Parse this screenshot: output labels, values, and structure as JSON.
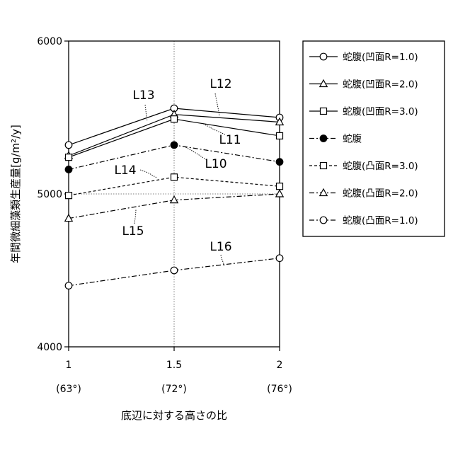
{
  "chart_data": {
    "type": "line",
    "title": "",
    "ylabel": "年間微細藻類生産量[g/m²/y]",
    "xlabel": "底辺に対する高さの比",
    "ylim": [
      4000,
      6000
    ],
    "yticks": [
      4000,
      5000,
      6000
    ],
    "x": [
      1,
      1.5,
      2
    ],
    "xtick_labels": [
      "1",
      "1.5",
      "2"
    ],
    "xtick_sublabels": [
      "(63°)",
      "(72°)",
      "(76°)"
    ],
    "grid": "dotted lines at x=1.5 and y=5000",
    "legend_position": "right",
    "series": [
      {
        "name": "蛇腹(凹面R=1.0)",
        "values": [
          5320,
          5560,
          5500
        ],
        "marker": "circle",
        "fill": "open",
        "line": "solid"
      },
      {
        "name": "蛇腹(凹面R=2.0)",
        "values": [
          5250,
          5520,
          5470
        ],
        "marker": "triangle",
        "fill": "open",
        "line": "solid"
      },
      {
        "name": "蛇腹(凹面R=3.0)",
        "values": [
          5240,
          5490,
          5380
        ],
        "marker": "square",
        "fill": "open",
        "line": "solid"
      },
      {
        "name": "蛇腹",
        "values": [
          5160,
          5320,
          5210
        ],
        "marker": "circle",
        "fill": "filled",
        "line": "dashdot"
      },
      {
        "name": "蛇腹(凸面R=3.0)",
        "values": [
          4990,
          5110,
          5050
        ],
        "marker": "square",
        "fill": "open",
        "line": "dashed"
      },
      {
        "name": "蛇腹(凸面R=2.0)",
        "values": [
          4840,
          4960,
          5000
        ],
        "marker": "triangle",
        "fill": "open",
        "line": "dashdot"
      },
      {
        "name": "蛇腹(凸面R=1.0)",
        "values": [
          4400,
          4500,
          4580
        ],
        "marker": "circle",
        "fill": "open",
        "line": "dashdot"
      }
    ],
    "annotations": [
      {
        "text": "L13",
        "series": 0
      },
      {
        "text": "L12",
        "series": 1
      },
      {
        "text": "L11",
        "series": 2
      },
      {
        "text": "L10",
        "series": 3
      },
      {
        "text": "L14",
        "series": 4
      },
      {
        "text": "L15",
        "series": 5
      },
      {
        "text": "L16",
        "series": 6
      }
    ]
  }
}
